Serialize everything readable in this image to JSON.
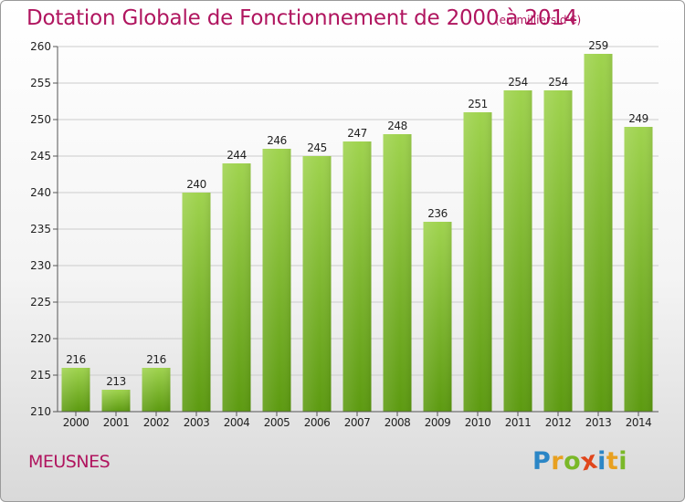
{
  "header": {
    "title": "Dotation Globale de Fonctionnement de 2000 à 2014",
    "unit": "(en milliers d'€)"
  },
  "footer": {
    "commune": "MEUSNES"
  },
  "logo": {
    "letters": [
      {
        "char": "P",
        "color": "#2b86c6"
      },
      {
        "char": "r",
        "color": "#e8a020"
      },
      {
        "char": "o",
        "color": "#7ab828"
      },
      {
        "char": "x",
        "color": "#e0461c"
      },
      {
        "char": "i",
        "color": "#2b86c6"
      },
      {
        "char": "t",
        "color": "#e8a020"
      },
      {
        "char": "i",
        "color": "#7ab828"
      }
    ]
  },
  "colors": {
    "accent": "#b0155f",
    "bar_top": "#9fd34e",
    "bar_bottom": "#5c9a10",
    "grid": "#cccccc",
    "axis_text": "#222222"
  },
  "chart_data": {
    "type": "bar",
    "categories": [
      "2000",
      "2001",
      "2002",
      "2003",
      "2004",
      "2005",
      "2006",
      "2007",
      "2008",
      "2009",
      "2010",
      "2011",
      "2012",
      "2013",
      "2014"
    ],
    "values": [
      216,
      213,
      216,
      240,
      244,
      246,
      245,
      247,
      248,
      236,
      251,
      254,
      254,
      259,
      249
    ],
    "ylim": [
      210,
      260
    ],
    "yticks": [
      210,
      215,
      220,
      225,
      230,
      235,
      240,
      245,
      250,
      255,
      260
    ],
    "grid": true,
    "data_labels": true
  }
}
